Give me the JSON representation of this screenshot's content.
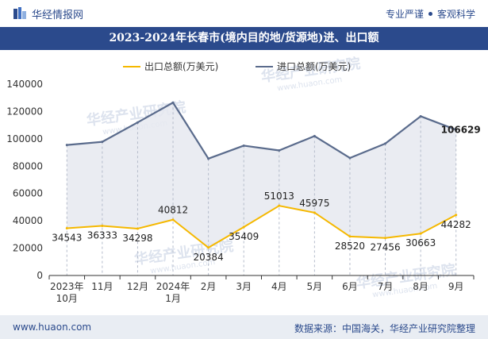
{
  "header": {
    "brand": "华经情报网",
    "slogan_left": "专业严谨",
    "slogan_right": "客观科学",
    "logo_icon": "huajing-logo-icon"
  },
  "title": "2023-2024年长春市(境内目的地/货源地)进、出口额",
  "footer": {
    "website": "www.huaon.com",
    "source": "数据来源：中国海关，华经产业研究院整理"
  },
  "watermark": {
    "brand": "华经产业研究院",
    "url": "www.huaon.com"
  },
  "colors": {
    "brand": "#2b4a8c",
    "export_line": "#f5b800",
    "import_line": "#5a6b8c",
    "area_fill": "#e6e9f0"
  },
  "chart_data": {
    "type": "area",
    "title": "2023-2024年长春市(境内目的地/货源地)进、出口额",
    "categories": [
      "2023年\n10月",
      "11月",
      "12月",
      "2024年\n1月",
      "2月",
      "3月",
      "4月",
      "5月",
      "6月",
      "7月",
      "8月",
      "9月"
    ],
    "series": [
      {
        "name": "出口总额(万美元)",
        "values": [
          34543,
          36333,
          34298,
          40812,
          20384,
          35409,
          51013,
          45975,
          28520,
          27456,
          30663,
          44282
        ],
        "labels": [
          "34543",
          "36333",
          "34298",
          "40812",
          "20384",
          "35409",
          "51013",
          "45975",
          "28520",
          "27456",
          "30663",
          "44282"
        ]
      },
      {
        "name": "进口总额(万美元)",
        "values": [
          95500,
          97800,
          112000,
          126500,
          85500,
          95000,
          91500,
          102000,
          86000,
          96500,
          116500,
          106629
        ],
        "labels": [
          "",
          "",
          "",
          "",
          "",
          "",
          "",
          "",
          "",
          "",
          "",
          "106629"
        ]
      }
    ],
    "yticks": [
      "0",
      "20000",
      "40000",
      "60000",
      "80000",
      "100000",
      "120000",
      "140000"
    ],
    "ylim": [
      0,
      140000
    ],
    "xlabel": "",
    "ylabel": "",
    "legend_position": "top-center"
  }
}
